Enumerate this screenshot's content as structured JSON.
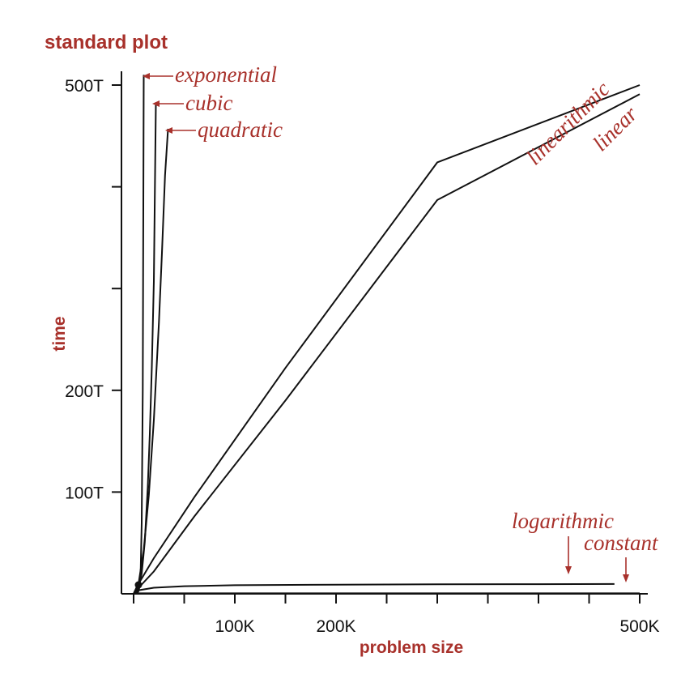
{
  "chart_data": {
    "type": "line",
    "title": "standard plot",
    "xlabel": "problem size",
    "ylabel": "time",
    "xlim": [
      0,
      500
    ],
    "ylim": [
      0,
      500
    ],
    "x_unit": "K",
    "y_unit": "T",
    "x_ticks": [
      0,
      50,
      100,
      150,
      200,
      250,
      300,
      350,
      400,
      450,
      500
    ],
    "x_tick_labels": [
      "",
      "",
      "100K",
      "",
      "200K",
      "",
      "",
      "",
      "",
      "",
      "500K"
    ],
    "y_ticks": [
      0,
      100,
      200,
      300,
      400,
      500
    ],
    "y_tick_labels": [
      "",
      "100T",
      "200T",
      "",
      "",
      "500T"
    ],
    "grid": false,
    "series": [
      {
        "name": "exponential",
        "x": [
          0,
          1,
          2,
          3,
          4,
          5,
          6,
          7,
          8,
          9,
          10
        ],
        "y": [
          0,
          0.06,
          0.2,
          0.5,
          1,
          3,
          8,
          25,
          70,
          200,
          510
        ]
      },
      {
        "name": "cubic",
        "x": [
          0,
          4,
          8,
          11,
          14,
          16,
          18,
          20,
          22
        ],
        "y": [
          0,
          2.5,
          19.8,
          51,
          105,
          157,
          223,
          307,
          482
        ]
      },
      {
        "name": "quadratic",
        "x": [
          0,
          5,
          10,
          15,
          20,
          25,
          28,
          31,
          34
        ],
        "y": [
          0,
          11,
          43,
          97,
          171,
          267,
          335,
          411,
          457
        ]
      },
      {
        "name": "linearithmic",
        "x": [
          0,
          5,
          20,
          60,
          150,
          300,
          500
        ],
        "y": [
          0,
          10,
          35,
          95,
          222,
          424,
          500
        ]
      },
      {
        "name": "linear",
        "x": [
          0,
          5,
          20,
          60,
          150,
          300,
          500
        ],
        "y": [
          0,
          6,
          22,
          76,
          190,
          387,
          491
        ]
      },
      {
        "name": "logarithmic",
        "x": [
          0,
          5,
          20,
          50,
          100,
          200,
          300,
          400,
          475
        ],
        "y": [
          0,
          3.5,
          6,
          7.5,
          8.4,
          9.0,
          9.3,
          9.5,
          9.6
        ]
      },
      {
        "name": "constant",
        "x": [
          0,
          500
        ],
        "y": [
          0.5,
          0.5
        ]
      }
    ]
  }
}
